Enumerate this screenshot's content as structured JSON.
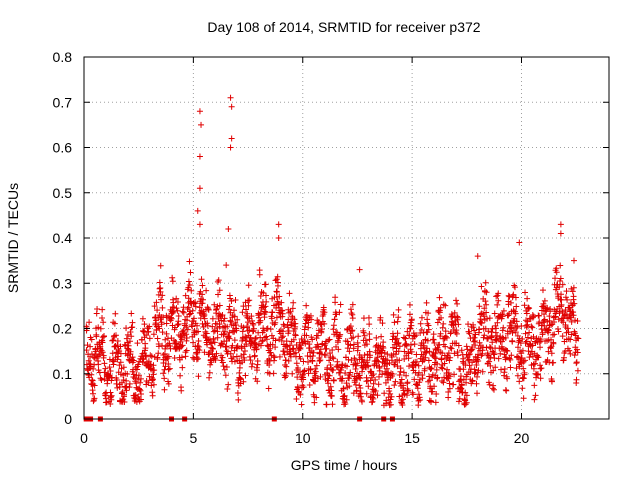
{
  "chart_data": {
    "type": "scatter",
    "title": "Day 108 of 2014, SRMTID for receiver p372",
    "xlabel": "GPS time / hours",
    "ylabel": "SRMTID / TECUs",
    "xlim": [
      0,
      24
    ],
    "ylim": [
      0,
      0.8
    ],
    "x_ticks": [
      0,
      5,
      10,
      15,
      20
    ],
    "y_ticks": [
      0,
      0.1,
      0.2,
      0.3,
      0.4,
      0.5,
      0.6,
      0.7,
      0.8
    ],
    "x_tick_labels": [
      "0",
      "5",
      "10",
      "15",
      "20"
    ],
    "y_tick_labels": [
      "0",
      "0.1",
      "0.2",
      "0.3",
      "0.4",
      "0.5",
      "0.6",
      "0.7",
      "0.8"
    ],
    "grid": true,
    "marker": "+",
    "marker_color": "#e00000",
    "zero_points_x": [
      0.1,
      0.2,
      0.3,
      0.75,
      4.0,
      4.6,
      8.7,
      12.6,
      13.7,
      14.1
    ],
    "series_envelope": [
      [
        0.1,
        0.15
      ],
      [
        0.5,
        0.14
      ],
      [
        1.0,
        0.1
      ],
      [
        1.5,
        0.12
      ],
      [
        2.0,
        0.11
      ],
      [
        2.5,
        0.1
      ],
      [
        3.0,
        0.14
      ],
      [
        3.5,
        0.2
      ],
      [
        4.0,
        0.18
      ],
      [
        4.5,
        0.2
      ],
      [
        5.0,
        0.22
      ],
      [
        5.5,
        0.2
      ],
      [
        6.0,
        0.18
      ],
      [
        6.5,
        0.19
      ],
      [
        7.0,
        0.17
      ],
      [
        7.5,
        0.18
      ],
      [
        8.0,
        0.2
      ],
      [
        8.5,
        0.19
      ],
      [
        9.0,
        0.22
      ],
      [
        9.5,
        0.15
      ],
      [
        10.0,
        0.13
      ],
      [
        10.5,
        0.14
      ],
      [
        11.0,
        0.13
      ],
      [
        11.5,
        0.14
      ],
      [
        12.0,
        0.12
      ],
      [
        12.5,
        0.14
      ],
      [
        13.0,
        0.1
      ],
      [
        13.5,
        0.12
      ],
      [
        14.0,
        0.11
      ],
      [
        14.5,
        0.12
      ],
      [
        15.0,
        0.13
      ],
      [
        15.5,
        0.14
      ],
      [
        16.0,
        0.15
      ],
      [
        16.5,
        0.16
      ],
      [
        17.0,
        0.15
      ],
      [
        17.5,
        0.09
      ],
      [
        18.0,
        0.2
      ],
      [
        18.5,
        0.18
      ],
      [
        19.0,
        0.17
      ],
      [
        19.5,
        0.19
      ],
      [
        20.0,
        0.18
      ],
      [
        20.5,
        0.17
      ],
      [
        21.0,
        0.18
      ],
      [
        21.5,
        0.22
      ],
      [
        22.0,
        0.24
      ],
      [
        22.5,
        0.18
      ]
    ],
    "peaks": [
      {
        "x": 5.3,
        "y": 0.68
      },
      {
        "x": 5.35,
        "y": 0.65
      },
      {
        "x": 5.3,
        "y": 0.58
      },
      {
        "x": 5.3,
        "y": 0.51
      },
      {
        "x": 5.2,
        "y": 0.46
      },
      {
        "x": 5.3,
        "y": 0.43
      },
      {
        "x": 6.7,
        "y": 0.71
      },
      {
        "x": 6.75,
        "y": 0.69
      },
      {
        "x": 6.75,
        "y": 0.62
      },
      {
        "x": 6.7,
        "y": 0.6
      },
      {
        "x": 6.6,
        "y": 0.42
      },
      {
        "x": 6.5,
        "y": 0.34
      },
      {
        "x": 8.9,
        "y": 0.43
      },
      {
        "x": 8.9,
        "y": 0.4
      },
      {
        "x": 12.6,
        "y": 0.33
      },
      {
        "x": 21.8,
        "y": 0.43
      },
      {
        "x": 21.8,
        "y": 0.41
      },
      {
        "x": 19.9,
        "y": 0.39
      },
      {
        "x": 18.0,
        "y": 0.36
      },
      {
        "x": 22.4,
        "y": 0.35
      }
    ]
  }
}
